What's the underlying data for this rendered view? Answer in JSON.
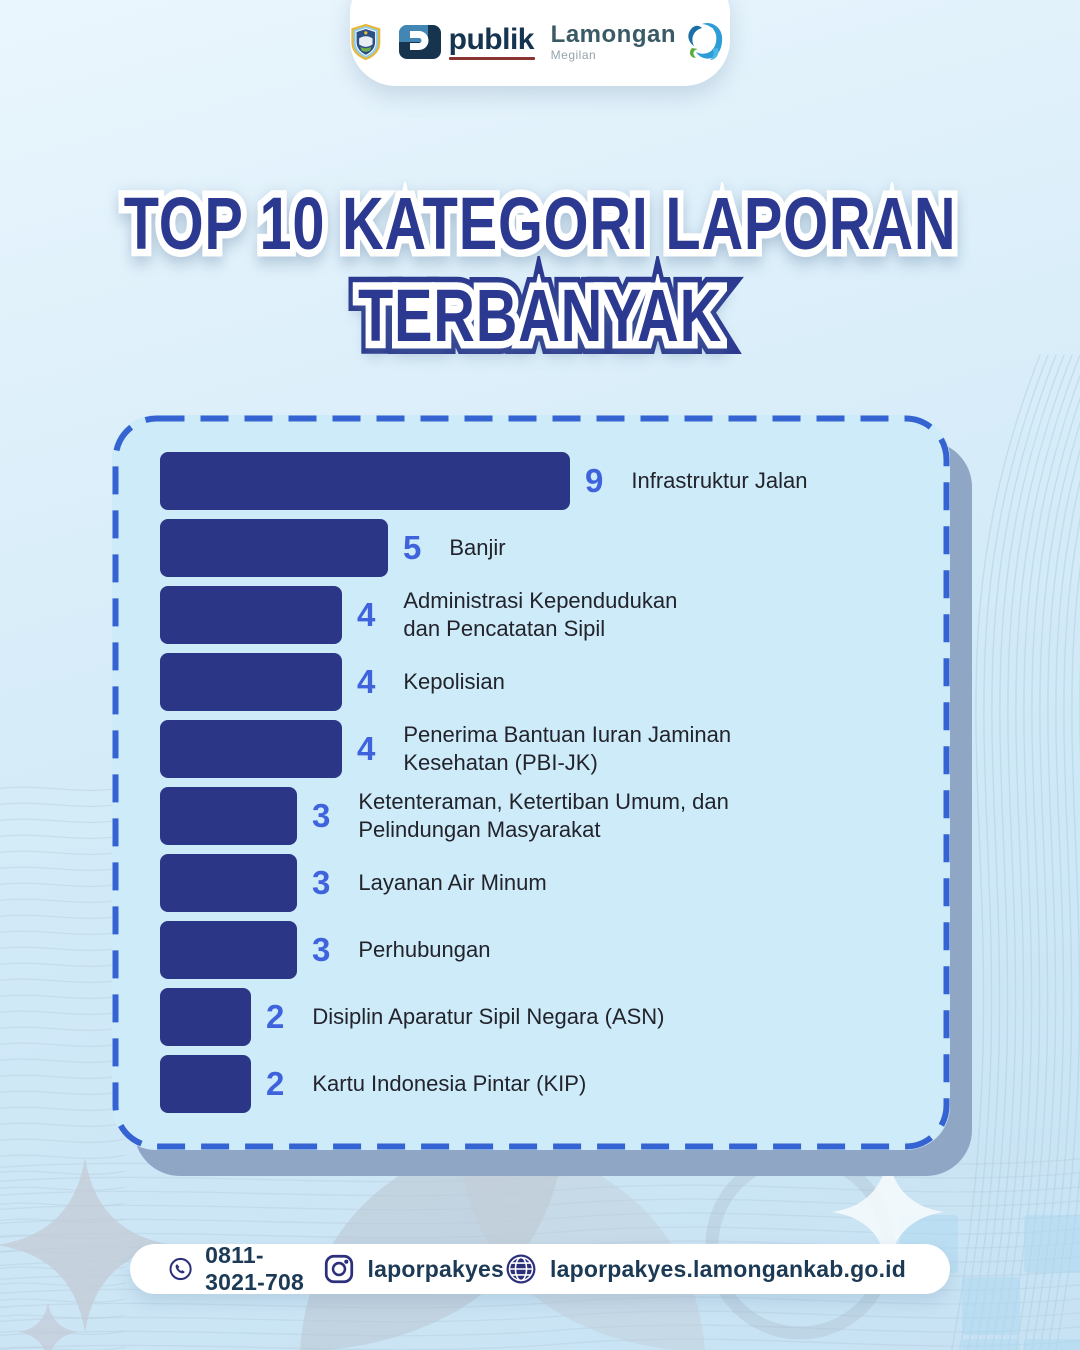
{
  "header": {
    "crest_logo": "lamongan-regency-crest",
    "publik": {
      "word": "publik"
    },
    "lamongan": {
      "word": "Lamongan",
      "subtitle": "Megilan"
    }
  },
  "title": {
    "line1": "TOP 10 KATEGORI LAPORAN",
    "line2": "TERBANYAK"
  },
  "chart_data": {
    "type": "bar",
    "orientation": "horizontal",
    "title": "TOP 10 KATEGORI LAPORAN TERBANYAK",
    "categories": [
      "Infrastruktur Jalan",
      "Banjir",
      "Administrasi Kependudukan\ndan Pencatatan Sipil",
      "Kepolisian",
      "Penerima Bantuan Iuran Jaminan\nKesehatan (PBI-JK)",
      "Ketenteraman, Ketertiban Umum, dan\nPelindungan Masyarakat",
      "Layanan Air Minum",
      "Perhubungan",
      "Disiplin Aparatur Sipil Negara (ASN)",
      "Kartu Indonesia Pintar (KIP)"
    ],
    "values": [
      9,
      5,
      4,
      4,
      4,
      3,
      3,
      3,
      2,
      2
    ],
    "xlim": [
      0,
      9
    ],
    "value_labels_shown": true,
    "legend": "none",
    "grid": "off",
    "bar_color": "#2B3687",
    "value_color": "#3E63DD",
    "label_color": "#23232B"
  },
  "contact": {
    "phone": "0811-3021-708",
    "instagram": "laporpakyes",
    "website": "laporpakyes.lamongankab.go.id",
    "icons": {
      "phone": "whatsapp-phone-icon",
      "instagram": "instagram-icon",
      "website": "globe-icon"
    }
  },
  "colors": {
    "title_navy": "#2B3990",
    "card_bg": "#CDEBF9",
    "card_border": "#3564D2",
    "card_shadow": "#8FA6C4",
    "bar_navy": "#2B3687",
    "value_blue": "#3E63DD",
    "contact_text": "#1C3A55",
    "contact_icon": "#2C307C"
  }
}
